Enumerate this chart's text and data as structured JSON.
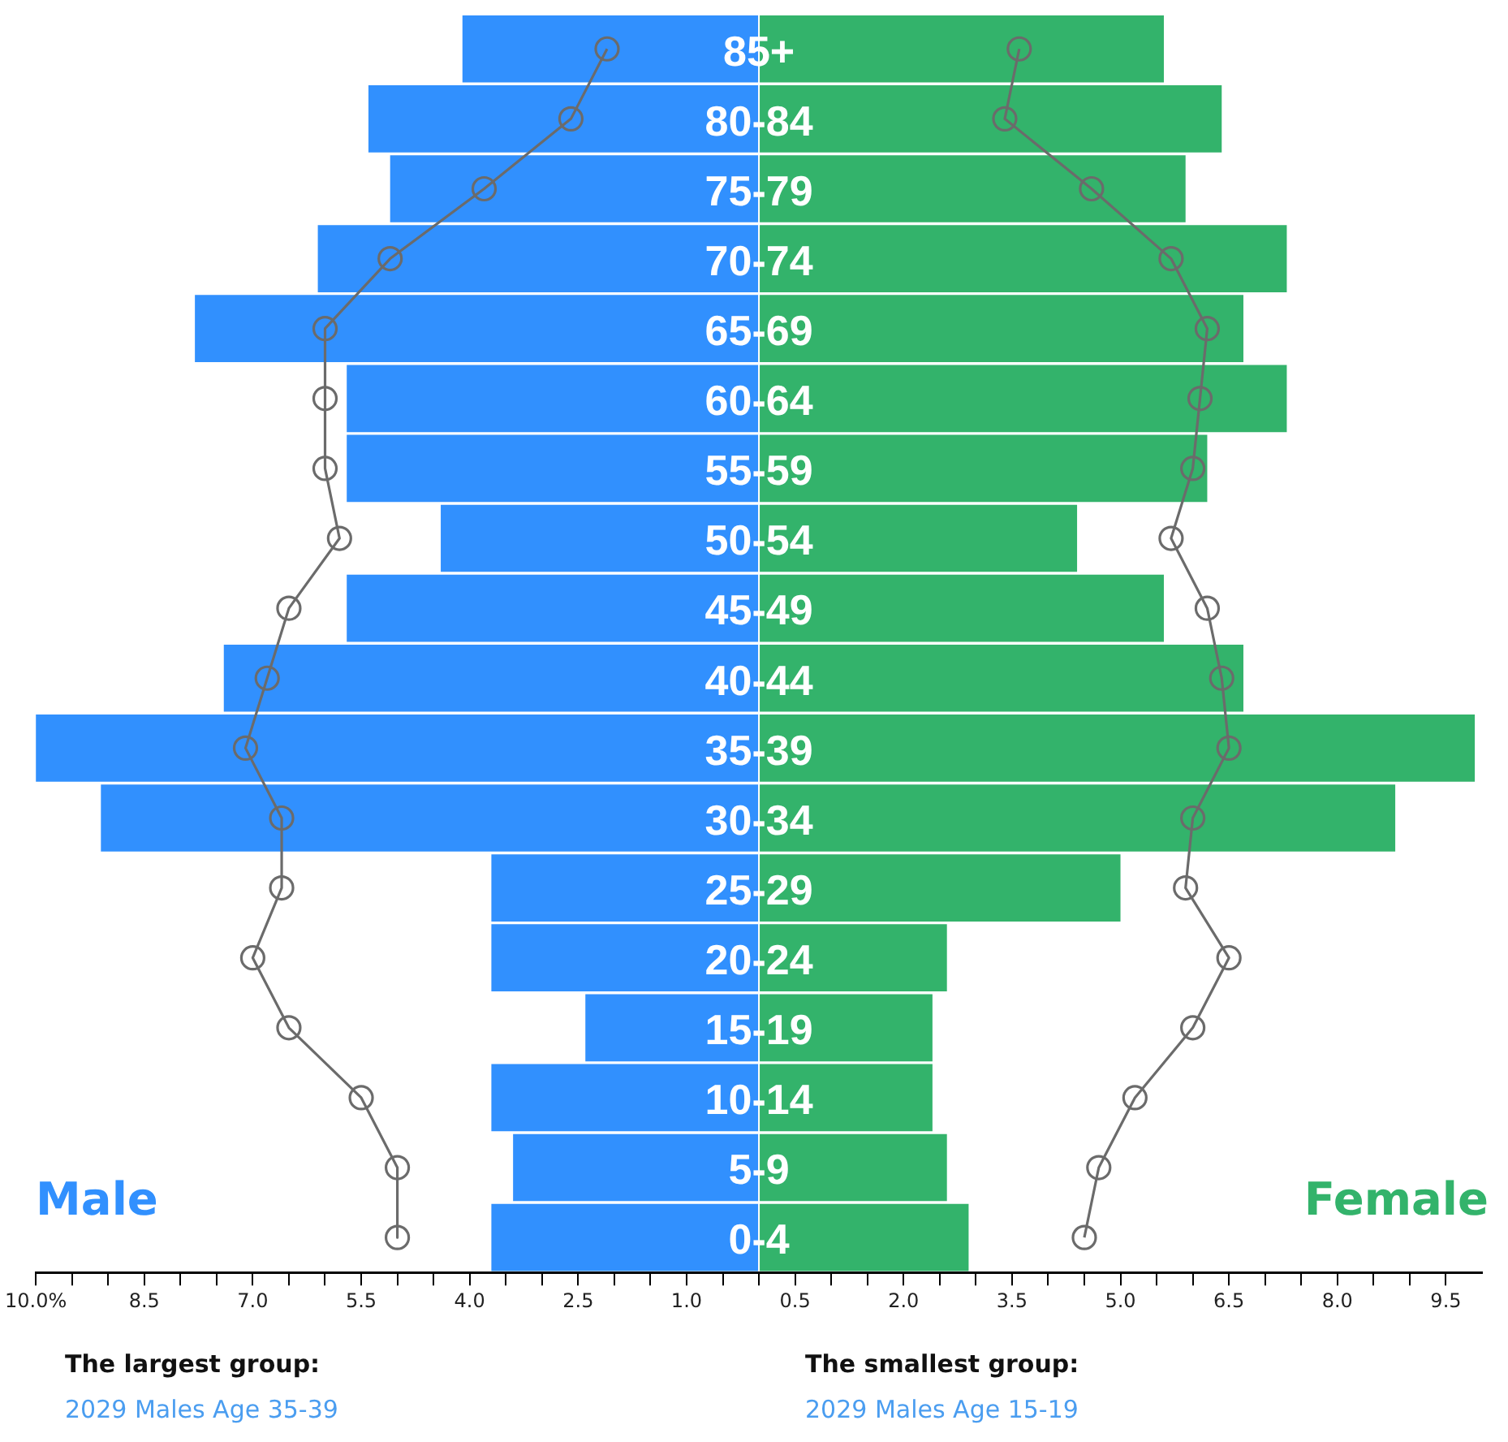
{
  "chart_data": {
    "type": "bar",
    "orientation": "horizontal",
    "stacked": true,
    "categories": [
      "85+",
      "80-84",
      "75-79",
      "70-74",
      "65-69",
      "60-64",
      "55-59",
      "50-54",
      "45-49",
      "40-44",
      "35-39",
      "30-34",
      "25-29",
      "20-24",
      "15-19",
      "10-14",
      "5-9",
      "0-4"
    ],
    "series": [
      {
        "name": "Male",
        "color": "#3190fe",
        "values": [
          -4.1,
          -5.4,
          -5.1,
          -6.1,
          -7.8,
          -5.7,
          -5.7,
          -4.4,
          -5.7,
          -7.4,
          -10.0,
          -9.1,
          -3.7,
          -3.7,
          -2.4,
          -3.7,
          -3.4,
          -3.7
        ]
      },
      {
        "name": "Female",
        "color": "#33b36b",
        "values": [
          5.6,
          6.4,
          5.9,
          7.3,
          6.7,
          7.3,
          6.2,
          4.4,
          5.6,
          6.7,
          9.9,
          8.8,
          5.0,
          2.6,
          2.4,
          2.4,
          2.6,
          2.9
        ]
      },
      {
        "type": "line",
        "color": "#6b6b6b",
        "values": [
          -2.1,
          -2.6,
          -3.8,
          -5.1,
          -6.0,
          -6.0,
          -6.0,
          -5.8,
          -6.5,
          -6.8,
          -7.1,
          -6.6,
          -6.6,
          -7.0,
          -6.5,
          -5.5,
          -5.0,
          -5.0
        ]
      },
      {
        "type": "line",
        "color": "#6b6b6b",
        "values": [
          3.6,
          3.4,
          4.6,
          5.7,
          6.2,
          6.1,
          6.0,
          5.7,
          6.2,
          6.4,
          6.5,
          6.0,
          5.9,
          6.5,
          6.0,
          5.2,
          4.7,
          4.5
        ]
      }
    ],
    "marker": "circle",
    "grid": false,
    "legend": false,
    "xlim": [
      -10,
      10
    ],
    "xticks": [
      {
        "value": -10,
        "label": "10.0%"
      },
      {
        "value": -9.5,
        "label": null
      },
      {
        "value": -9,
        "label": null
      },
      {
        "value": -8.5,
        "label": "8.5"
      },
      {
        "value": -8,
        "label": null
      },
      {
        "value": -7.5,
        "label": null
      },
      {
        "value": -7,
        "label": "7.0"
      },
      {
        "value": -6.5,
        "label": null
      },
      {
        "value": -6,
        "label": null
      },
      {
        "value": -5.5,
        "label": "5.5"
      },
      {
        "value": -5,
        "label": null
      },
      {
        "value": -4.5,
        "label": null
      },
      {
        "value": -4,
        "label": "4.0"
      },
      {
        "value": -3.5,
        "label": null
      },
      {
        "value": -3,
        "label": null
      },
      {
        "value": -2.5,
        "label": "2.5"
      },
      {
        "value": -2,
        "label": null
      },
      {
        "value": -1.5,
        "label": null
      },
      {
        "value": -1,
        "label": "1.0"
      },
      {
        "value": -0.5,
        "label": null
      },
      {
        "value": 0,
        "label": null
      },
      {
        "value": 0.5,
        "label": "0.5"
      },
      {
        "value": 1,
        "label": null
      },
      {
        "value": 1.5,
        "label": null
      },
      {
        "value": 2,
        "label": "2.0"
      },
      {
        "value": 2.5,
        "label": null
      },
      {
        "value": 3,
        "label": null
      },
      {
        "value": 3.5,
        "label": "3.5"
      },
      {
        "value": 4,
        "label": null
      },
      {
        "value": 4.5,
        "label": null
      },
      {
        "value": 5,
        "label": "5.0"
      },
      {
        "value": 5.5,
        "label": null
      },
      {
        "value": 6,
        "label": null
      },
      {
        "value": 6.5,
        "label": "6.5"
      },
      {
        "value": 7,
        "label": null
      },
      {
        "value": 7.5,
        "label": null
      },
      {
        "value": 8,
        "label": "8.0"
      },
      {
        "value": 8.5,
        "label": null
      },
      {
        "value": 9,
        "label": null
      },
      {
        "value": 9.5,
        "label": "9.5"
      }
    ],
    "annotations": [
      "The largest group:",
      "2029 Males Age 35-39",
      "The smallest group:",
      "2029 Males Age 15-19"
    ]
  }
}
